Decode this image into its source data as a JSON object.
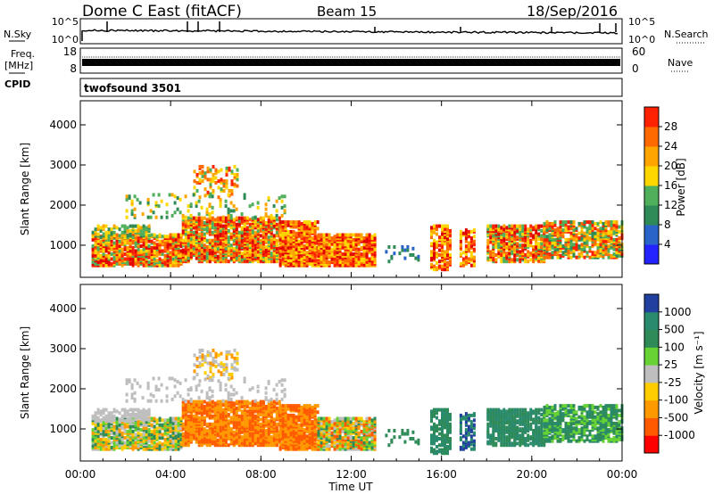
{
  "header": {
    "title": "Dome C East (fitACF)",
    "beam": "Beam 15",
    "date": "18/Sep/2016"
  },
  "left_labels": {
    "nsky": "N.Sky",
    "freq_line1": "Freq.",
    "freq_line2": "[MHz]",
    "cpid": "CPID"
  },
  "right_labels": {
    "nsearch": "N.Search",
    "nave": "Nave"
  },
  "noise_panel": {
    "left_top": "10^5",
    "left_bottom": "10^0",
    "right_top": "10^5",
    "right_bottom": "10^0"
  },
  "freq_panel": {
    "left_ticks": [
      "18",
      "8"
    ],
    "right_ticks": [
      "60",
      "0"
    ]
  },
  "cpid_panel": {
    "program": "twofsound 3501"
  },
  "colors": {
    "velocity": [
      "#ff0000",
      "#ff5a00",
      "#ff9900",
      "#ffcc00",
      "#bebebe",
      "#66d233",
      "#2e8b57",
      "#2a8a6e",
      "#2240a0"
    ],
    "power": [
      "#2323ff",
      "#2a64c8",
      "#2e8b57",
      "#4faf5a",
      "#ffd700",
      "#ffa500",
      "#ff6a00",
      "#ff2200",
      "#e00000"
    ]
  },
  "chart_data": [
    {
      "type": "heatmap",
      "name": "power",
      "ylabel": "Slant Range [km]",
      "ylim": [
        200,
        4600
      ],
      "yticks": [
        "1000",
        "2000",
        "3000",
        "4000"
      ],
      "colorbar_label": "Power [dB]",
      "colorbar_ticks": [
        "4",
        "8",
        "12",
        "16",
        "20",
        "24",
        "28"
      ],
      "colorbar_range": [
        0,
        32
      ],
      "xlim_hours": [
        0,
        24
      ]
    },
    {
      "type": "heatmap",
      "name": "velocity",
      "ylabel": "Slant Range [km]",
      "ylim": [
        200,
        4600
      ],
      "yticks": [
        "1000",
        "2000",
        "3000",
        "4000"
      ],
      "colorbar_label": "Velocity [m s⁻¹]",
      "colorbar_ticks": [
        "-1000",
        "-500",
        "-100",
        "-25",
        "25",
        "100",
        "500",
        "1000"
      ],
      "xlim_hours": [
        0,
        24
      ],
      "xticks": [
        "00:00",
        "04:00",
        "08:00",
        "12:00",
        "16:00",
        "20:00",
        "00:00"
      ],
      "xlabel": "Time UT"
    }
  ]
}
